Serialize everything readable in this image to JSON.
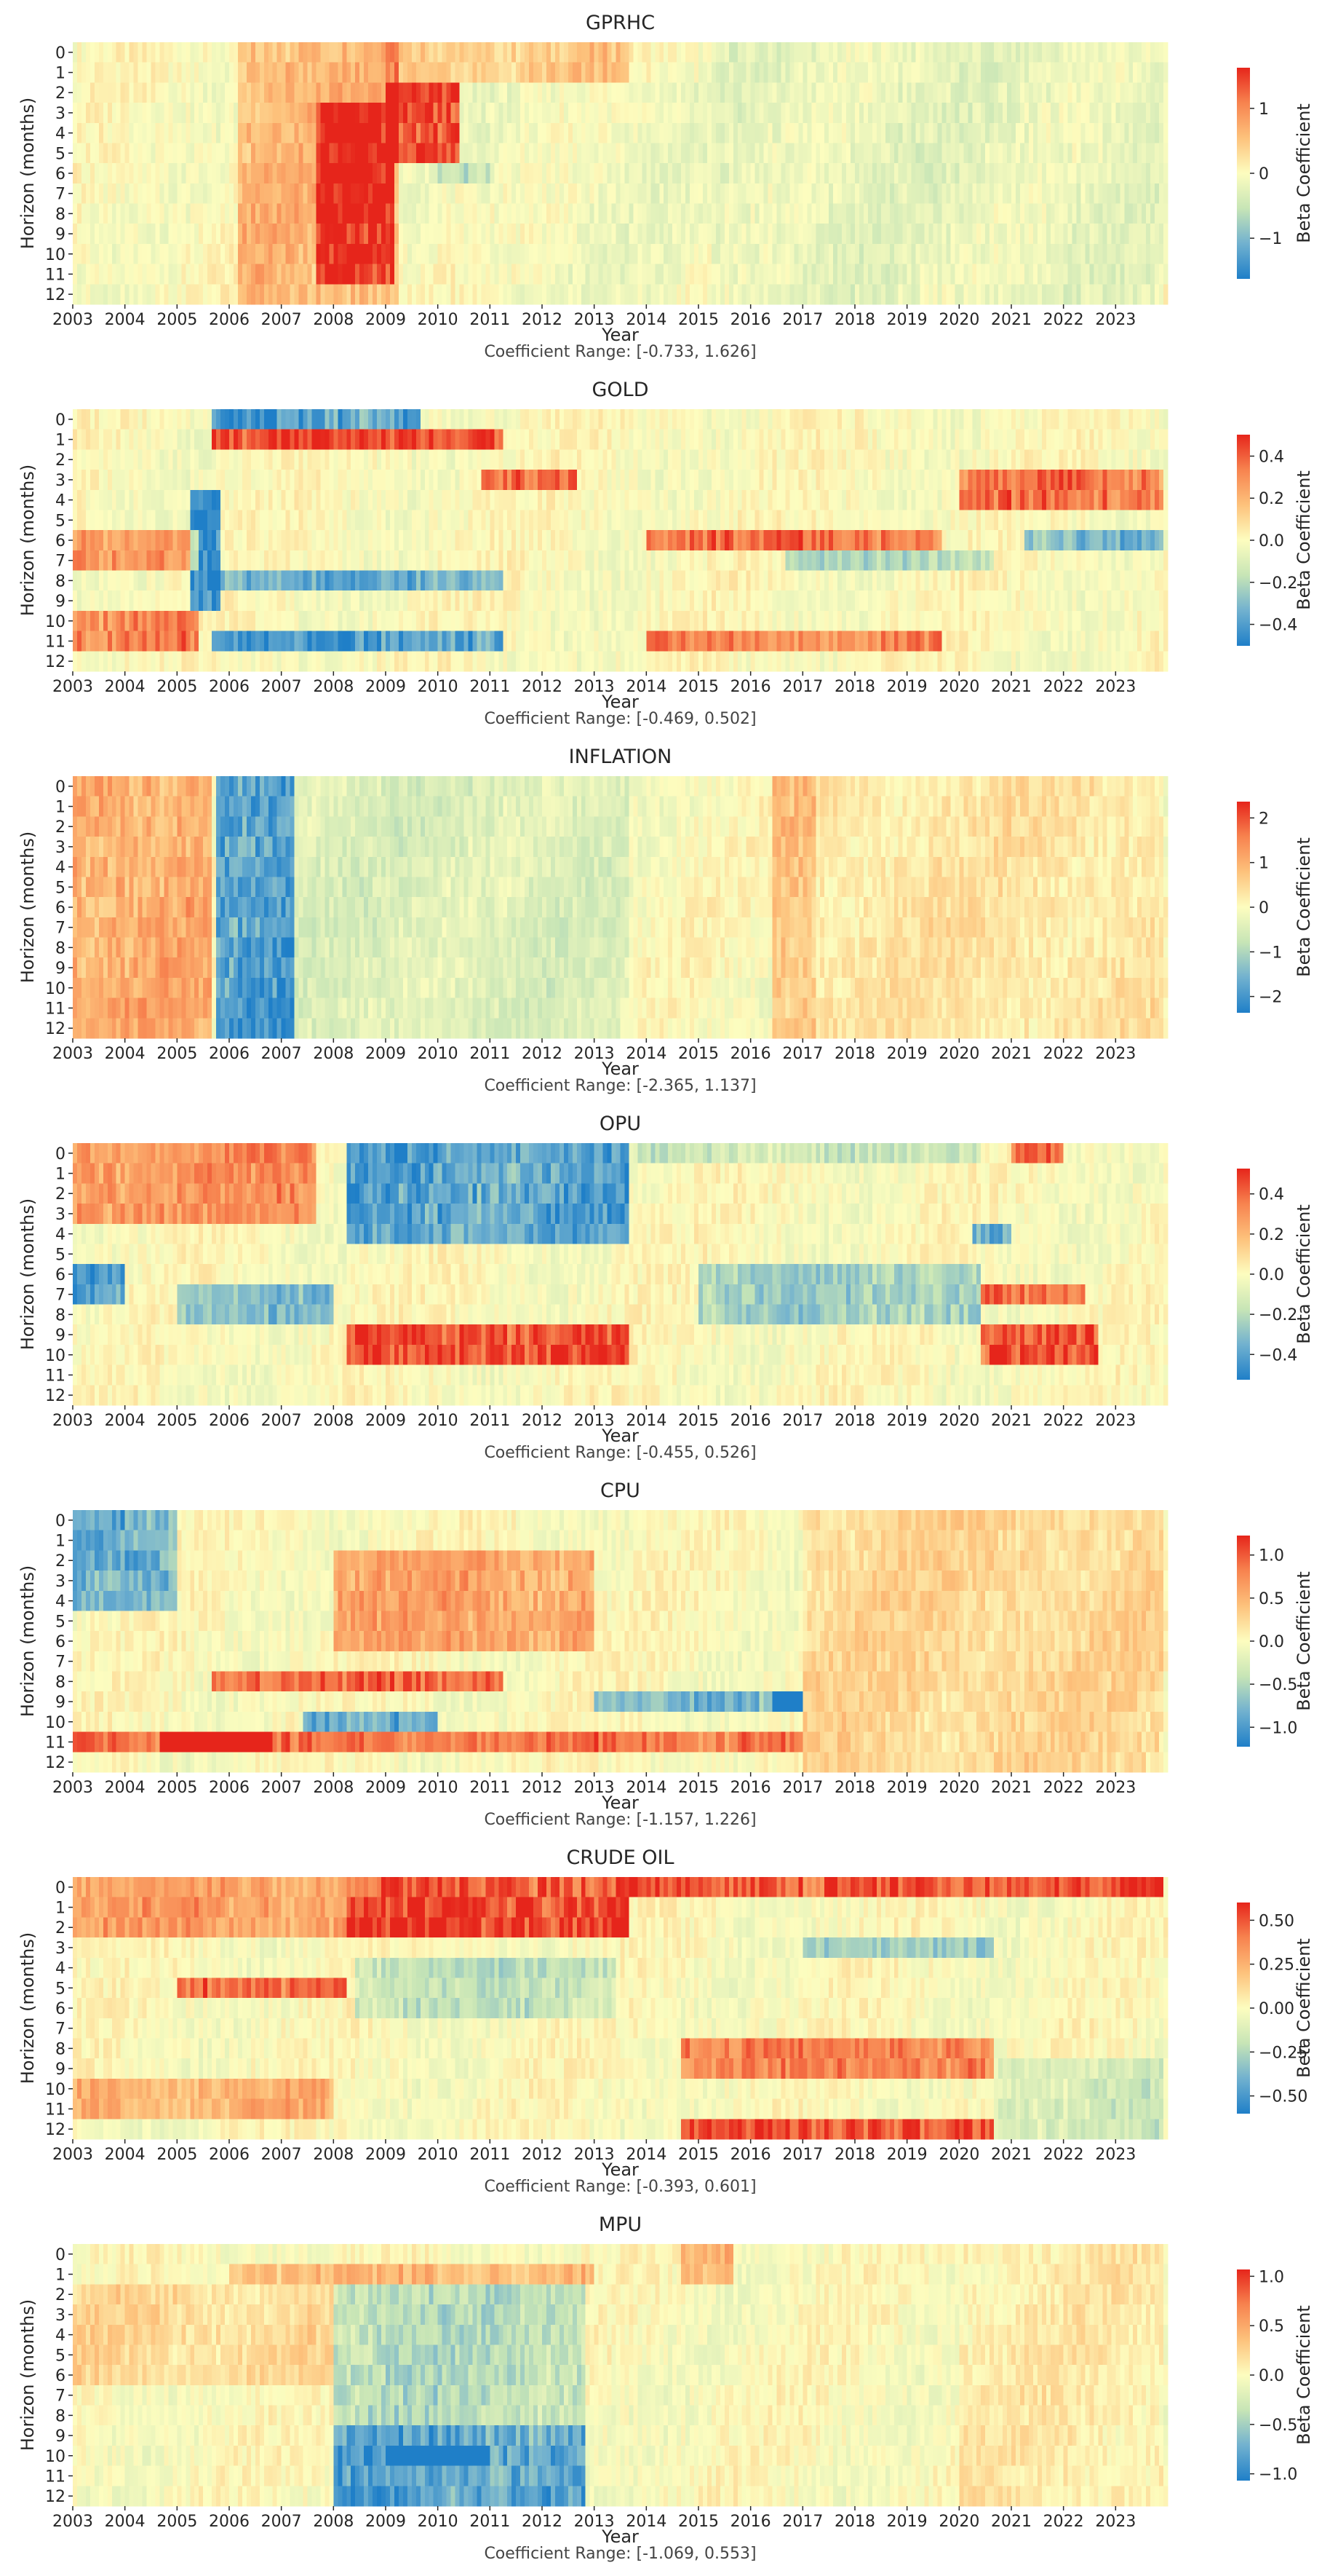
{
  "figure": {
    "shared": {
      "ylabel": "Horizon (months)",
      "xlabel": "Year",
      "colorbar_label": "Beta Coefficient",
      "horizons": [
        "0",
        "1",
        "2",
        "3",
        "4",
        "5",
        "6",
        "7",
        "8",
        "9",
        "10",
        "11",
        "12"
      ],
      "years": [
        "2003",
        "2004",
        "2005",
        "2006",
        "2007",
        "2008",
        "2009",
        "2010",
        "2011",
        "2012",
        "2013",
        "2014",
        "2015",
        "2016",
        "2017",
        "2018",
        "2019",
        "2020",
        "2021",
        "2022",
        "2023"
      ],
      "colormap": [
        "#1f7fc8",
        "#71b1cf",
        "#c7e5b6",
        "#fdfdbf",
        "#fdc27c",
        "#f7834f",
        "#e6251b"
      ]
    }
  },
  "chart_data": [
    {
      "type": "heatmap",
      "title": "GPRHC",
      "range_label": "Coefficient Range: [-0.733, 1.626]",
      "vmin": -1.626,
      "vmax": 1.626,
      "colorbar_ticks": [
        {
          "v": -1,
          "label": "−1"
        },
        {
          "v": 0,
          "label": "0"
        },
        {
          "v": 1,
          "label": "1"
        }
      ],
      "features": [
        {
          "start": 2006.1,
          "end": 2009.2,
          "rows": [
            0,
            12
          ],
          "value": 0.6
        },
        {
          "start": 2007.6,
          "end": 2009.1,
          "rows": [
            3,
            11
          ],
          "value": 1.1
        },
        {
          "start": 2009.0,
          "end": 2010.4,
          "rows": [
            2,
            5
          ],
          "value": 1.45
        },
        {
          "start": 2009.0,
          "end": 2013.6,
          "rows": [
            0,
            1
          ],
          "value": 0.45
        },
        {
          "start": 2010.0,
          "end": 2011.0,
          "rows": [
            6,
            6
          ],
          "value": -0.45
        },
        {
          "start": 2015.2,
          "end": 2023.9,
          "rows": [
            0,
            12
          ],
          "value": -0.2
        },
        {
          "start": 2010.5,
          "end": 2015.2,
          "rows": [
            2,
            12
          ],
          "value": -0.1
        }
      ]
    },
    {
      "type": "heatmap",
      "title": "GOLD",
      "range_label": "Coefficient Range: [-0.469, 0.502]",
      "vmin": -0.502,
      "vmax": 0.502,
      "colorbar_ticks": [
        {
          "v": -0.4,
          "label": "−0.4"
        },
        {
          "v": -0.2,
          "label": "−0.2"
        },
        {
          "v": 0,
          "label": "0.0"
        },
        {
          "v": 0.2,
          "label": "0.2"
        },
        {
          "v": 0.4,
          "label": "0.4"
        }
      ],
      "features": [
        {
          "start": 2005.6,
          "end": 2011.2,
          "rows": [
            1,
            1
          ],
          "value": 0.45
        },
        {
          "start": 2005.6,
          "end": 2011.2,
          "rows": [
            8,
            8
          ],
          "value": -0.35
        },
        {
          "start": 2005.6,
          "end": 2011.2,
          "rows": [
            11,
            11
          ],
          "value": -0.42
        },
        {
          "start": 2005.6,
          "end": 2009.6,
          "rows": [
            0,
            0
          ],
          "value": -0.4
        },
        {
          "start": 2010.8,
          "end": 2012.6,
          "rows": [
            3,
            3
          ],
          "value": 0.35
        },
        {
          "start": 2003.0,
          "end": 2005.4,
          "rows": [
            6,
            7
          ],
          "value": 0.3
        },
        {
          "start": 2003.0,
          "end": 2005.4,
          "rows": [
            10,
            11
          ],
          "value": 0.32
        },
        {
          "start": 2014.0,
          "end": 2019.6,
          "rows": [
            6,
            6
          ],
          "value": 0.35
        },
        {
          "start": 2014.0,
          "end": 2019.6,
          "rows": [
            11,
            11
          ],
          "value": 0.3
        },
        {
          "start": 2020.0,
          "end": 2023.9,
          "rows": [
            3,
            4
          ],
          "value": 0.35
        },
        {
          "start": 2021.2,
          "end": 2023.9,
          "rows": [
            6,
            6
          ],
          "value": -0.3
        },
        {
          "start": 2016.6,
          "end": 2020.6,
          "rows": [
            7,
            7
          ],
          "value": -0.2
        },
        {
          "start": 2005.2,
          "end": 2005.8,
          "rows": [
            4,
            9
          ],
          "value": -0.45
        }
      ]
    },
    {
      "type": "heatmap",
      "title": "INFLATION",
      "range_label": "Coefficient Range: [-2.365, 1.137]",
      "vmin": -2.365,
      "vmax": 2.365,
      "colorbar_ticks": [
        {
          "v": -2,
          "label": "−2"
        },
        {
          "v": -1,
          "label": "−1"
        },
        {
          "v": 0,
          "label": "0"
        },
        {
          "v": 1,
          "label": "1"
        },
        {
          "v": 2,
          "label": "2"
        }
      ],
      "features": [
        {
          "start": 2003.0,
          "end": 2005.6,
          "rows": [
            0,
            12
          ],
          "value": 1.05
        },
        {
          "start": 2005.7,
          "end": 2007.2,
          "rows": [
            0,
            12
          ],
          "value": -1.9
        },
        {
          "start": 2007.2,
          "end": 2013.6,
          "rows": [
            0,
            12
          ],
          "value": -0.45
        },
        {
          "start": 2016.4,
          "end": 2017.2,
          "rows": [
            0,
            12
          ],
          "value": 0.75
        },
        {
          "start": 2017.2,
          "end": 2023.9,
          "rows": [
            0,
            12
          ],
          "value": 0.3
        }
      ]
    },
    {
      "type": "heatmap",
      "title": "OPU",
      "range_label": "Coefficient Range: [-0.455, 0.526]",
      "vmin": -0.526,
      "vmax": 0.526,
      "colorbar_ticks": [
        {
          "v": -0.4,
          "label": "−0.4"
        },
        {
          "v": -0.2,
          "label": "−0.2"
        },
        {
          "v": 0,
          "label": "0.0"
        },
        {
          "v": 0.2,
          "label": "0.2"
        },
        {
          "v": 0.4,
          "label": "0.4"
        }
      ],
      "features": [
        {
          "start": 2008.2,
          "end": 2013.6,
          "rows": [
            0,
            4
          ],
          "value": -0.4
        },
        {
          "start": 2008.2,
          "end": 2013.6,
          "rows": [
            9,
            10
          ],
          "value": 0.45
        },
        {
          "start": 2003.0,
          "end": 2007.6,
          "rows": [
            0,
            3
          ],
          "value": 0.3
        },
        {
          "start": 2003.0,
          "end": 2004.0,
          "rows": [
            6,
            7
          ],
          "value": -0.4
        },
        {
          "start": 2005.0,
          "end": 2008.0,
          "rows": [
            7,
            8
          ],
          "value": -0.3
        },
        {
          "start": 2015.0,
          "end": 2020.4,
          "rows": [
            6,
            8
          ],
          "value": -0.25
        },
        {
          "start": 2013.8,
          "end": 2020.4,
          "rows": [
            0,
            0
          ],
          "value": -0.15
        },
        {
          "start": 2020.4,
          "end": 2022.6,
          "rows": [
            9,
            10
          ],
          "value": 0.45
        },
        {
          "start": 2020.4,
          "end": 2022.4,
          "rows": [
            7,
            7
          ],
          "value": 0.4
        },
        {
          "start": 2021.0,
          "end": 2022.0,
          "rows": [
            0,
            0
          ],
          "value": 0.4
        },
        {
          "start": 2020.2,
          "end": 2021.0,
          "rows": [
            4,
            4
          ],
          "value": -0.4
        }
      ]
    },
    {
      "type": "heatmap",
      "title": "CPU",
      "range_label": "Coefficient Range: [-1.157, 1.226]",
      "vmin": -1.226,
      "vmax": 1.226,
      "colorbar_ticks": [
        {
          "v": -1.0,
          "label": "−1.0"
        },
        {
          "v": -0.5,
          "label": "−0.5"
        },
        {
          "v": 0,
          "label": "0.0"
        },
        {
          "v": 0.5,
          "label": "0.5"
        },
        {
          "v": 1.0,
          "label": "1.0"
        }
      ],
      "features": [
        {
          "start": 2003.0,
          "end": 2005.0,
          "rows": [
            0,
            4
          ],
          "value": -0.8
        },
        {
          "start": 2003.0,
          "end": 2017.0,
          "rows": [
            11,
            11
          ],
          "value": 0.85
        },
        {
          "start": 2004.6,
          "end": 2006.8,
          "rows": [
            11,
            11
          ],
          "value": 1.1
        },
        {
          "start": 2005.6,
          "end": 2011.2,
          "rows": [
            8,
            8
          ],
          "value": 0.9
        },
        {
          "start": 2007.4,
          "end": 2010.0,
          "rows": [
            10,
            10
          ],
          "value": -0.9
        },
        {
          "start": 2013.0,
          "end": 2017.0,
          "rows": [
            9,
            9
          ],
          "value": -0.7
        },
        {
          "start": 2016.4,
          "end": 2017.0,
          "rows": [
            9,
            9
          ],
          "value": -1.1
        },
        {
          "start": 2008.0,
          "end": 2013.0,
          "rows": [
            2,
            6
          ],
          "value": 0.6
        },
        {
          "start": 2017.0,
          "end": 2023.9,
          "rows": [
            0,
            12
          ],
          "value": 0.25
        }
      ]
    },
    {
      "type": "heatmap",
      "title": "CRUDE OIL",
      "range_label": "Coefficient Range: [-0.393, 0.601]",
      "vmin": -0.601,
      "vmax": 0.601,
      "colorbar_ticks": [
        {
          "v": -0.5,
          "label": "−0.50"
        },
        {
          "v": -0.25,
          "label": "−0.25"
        },
        {
          "v": 0,
          "label": "0.00"
        },
        {
          "v": 0.25,
          "label": "0.25"
        },
        {
          "v": 0.5,
          "label": "0.50"
        }
      ],
      "features": [
        {
          "start": 2008.2,
          "end": 2023.9,
          "rows": [
            0,
            0
          ],
          "value": 0.5
        },
        {
          "start": 2008.2,
          "end": 2013.6,
          "rows": [
            1,
            2
          ],
          "value": 0.55
        },
        {
          "start": 2003.0,
          "end": 2008.2,
          "rows": [
            0,
            2
          ],
          "value": 0.3
        },
        {
          "start": 2005.0,
          "end": 2008.2,
          "rows": [
            5,
            5
          ],
          "value": 0.45
        },
        {
          "start": 2008.4,
          "end": 2013.4,
          "rows": [
            4,
            6
          ],
          "value": -0.2
        },
        {
          "start": 2014.6,
          "end": 2020.6,
          "rows": [
            8,
            9
          ],
          "value": 0.4
        },
        {
          "start": 2014.6,
          "end": 2020.6,
          "rows": [
            12,
            12
          ],
          "value": 0.5
        },
        {
          "start": 2017.0,
          "end": 2020.6,
          "rows": [
            3,
            3
          ],
          "value": -0.3
        },
        {
          "start": 2020.6,
          "end": 2023.9,
          "rows": [
            9,
            12
          ],
          "value": -0.15
        },
        {
          "start": 2003.0,
          "end": 2008.0,
          "rows": [
            10,
            11
          ],
          "value": 0.25
        }
      ]
    },
    {
      "type": "heatmap",
      "title": "MPU",
      "range_label": "Coefficient Range: [-1.069, 0.553]",
      "vmin": -1.069,
      "vmax": 1.069,
      "colorbar_ticks": [
        {
          "v": -1.0,
          "label": "−1.0"
        },
        {
          "v": -0.5,
          "label": "−0.5"
        },
        {
          "v": 0,
          "label": "0.0"
        },
        {
          "v": 0.5,
          "label": "0.5"
        },
        {
          "v": 1.0,
          "label": "1.0"
        }
      ],
      "features": [
        {
          "start": 2008.0,
          "end": 2012.8,
          "rows": [
            2,
            8
          ],
          "value": -0.4
        },
        {
          "start": 2008.0,
          "end": 2012.8,
          "rows": [
            9,
            12
          ],
          "value": -0.8
        },
        {
          "start": 2009.0,
          "end": 2011.0,
          "rows": [
            10,
            10
          ],
          "value": -1.0
        },
        {
          "start": 2006.0,
          "end": 2013.0,
          "rows": [
            1,
            1
          ],
          "value": 0.4
        },
        {
          "start": 2014.6,
          "end": 2015.6,
          "rows": [
            0,
            1
          ],
          "value": 0.45
        },
        {
          "start": 2003.0,
          "end": 2008.0,
          "rows": [
            2,
            6
          ],
          "value": 0.2
        },
        {
          "start": 2020.0,
          "end": 2023.9,
          "rows": [
            0,
            12
          ],
          "value": 0.1
        }
      ]
    }
  ]
}
